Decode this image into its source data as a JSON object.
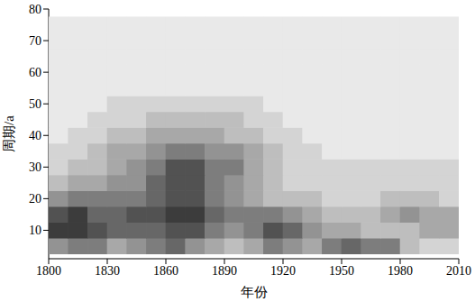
{
  "chart_data": {
    "type": "heatmap",
    "xlabel": "年份",
    "ylabel": "周期/a",
    "x": [
      1805,
      1815,
      1825,
      1835,
      1845,
      1855,
      1865,
      1875,
      1885,
      1895,
      1905,
      1915,
      1925,
      1935,
      1945,
      1955,
      1965,
      1975,
      1985,
      1995,
      2005
    ],
    "y": [
      5,
      10,
      15,
      20,
      25,
      30,
      35,
      40,
      45,
      50,
      55,
      60,
      65,
      70,
      75
    ],
    "values": [
      [
        0.5,
        0.6,
        0.6,
        0.4,
        0.5,
        0.6,
        0.7,
        0.5,
        0.4,
        0.3,
        0.4,
        0.6,
        0.5,
        0.4,
        0.6,
        0.7,
        0.6,
        0.6,
        0.3,
        0.2,
        0.2
      ],
      [
        0.9,
        0.9,
        0.8,
        0.7,
        0.7,
        0.7,
        0.8,
        0.8,
        0.6,
        0.5,
        0.6,
        0.8,
        0.7,
        0.5,
        0.4,
        0.4,
        0.3,
        0.3,
        0.3,
        0.4,
        0.4
      ],
      [
        0.8,
        0.9,
        0.7,
        0.7,
        0.8,
        0.8,
        0.9,
        0.9,
        0.7,
        0.6,
        0.6,
        0.6,
        0.5,
        0.4,
        0.3,
        0.3,
        0.3,
        0.4,
        0.5,
        0.4,
        0.4
      ],
      [
        0.5,
        0.6,
        0.6,
        0.6,
        0.6,
        0.7,
        0.8,
        0.8,
        0.6,
        0.5,
        0.4,
        0.3,
        0.3,
        0.3,
        0.2,
        0.2,
        0.2,
        0.3,
        0.3,
        0.3,
        0.2
      ],
      [
        0.3,
        0.4,
        0.4,
        0.5,
        0.5,
        0.7,
        0.8,
        0.8,
        0.6,
        0.5,
        0.4,
        0.3,
        0.2,
        0.2,
        0.2,
        0.2,
        0.2,
        0.2,
        0.2,
        0.2,
        0.2
      ],
      [
        0.2,
        0.3,
        0.3,
        0.4,
        0.5,
        0.6,
        0.8,
        0.8,
        0.6,
        0.6,
        0.4,
        0.3,
        0.2,
        0.2,
        0.2,
        0.2,
        0.2,
        0.2,
        0.2,
        0.2,
        0.2
      ],
      [
        0.2,
        0.2,
        0.3,
        0.4,
        0.4,
        0.5,
        0.6,
        0.6,
        0.5,
        0.5,
        0.4,
        0.3,
        0.2,
        0.2,
        0.1,
        0.1,
        0.1,
        0.1,
        0.1,
        0.1,
        0.1
      ],
      [
        0.1,
        0.2,
        0.2,
        0.3,
        0.3,
        0.4,
        0.4,
        0.4,
        0.4,
        0.3,
        0.3,
        0.2,
        0.2,
        0.1,
        0.1,
        0.1,
        0.1,
        0.1,
        0.1,
        0.1,
        0.1
      ],
      [
        0.1,
        0.1,
        0.2,
        0.2,
        0.2,
        0.3,
        0.3,
        0.3,
        0.3,
        0.3,
        0.2,
        0.2,
        0.1,
        0.1,
        0.1,
        0.1,
        0.1,
        0.1,
        0.1,
        0.1,
        0.1
      ],
      [
        0.1,
        0.1,
        0.1,
        0.2,
        0.2,
        0.2,
        0.2,
        0.2,
        0.2,
        0.2,
        0.2,
        0.1,
        0.1,
        0.1,
        0.1,
        0.1,
        0.1,
        0.1,
        0.1,
        0.1,
        0.1
      ],
      [
        0.1,
        0.1,
        0.1,
        0.1,
        0.1,
        0.1,
        0.1,
        0.1,
        0.1,
        0.1,
        0.1,
        0.1,
        0.1,
        0.1,
        0.1,
        0.1,
        0.1,
        0.1,
        0.1,
        0.1,
        0.1
      ],
      [
        0.1,
        0.1,
        0.1,
        0.1,
        0.1,
        0.1,
        0.1,
        0.1,
        0.1,
        0.1,
        0.1,
        0.1,
        0.1,
        0.1,
        0.1,
        0.1,
        0.1,
        0.1,
        0.1,
        0.1,
        0.1
      ],
      [
        0.1,
        0.1,
        0.1,
        0.1,
        0.1,
        0.1,
        0.1,
        0.1,
        0.1,
        0.1,
        0.1,
        0.1,
        0.1,
        0.1,
        0.1,
        0.1,
        0.1,
        0.1,
        0.1,
        0.1,
        0.1
      ],
      [
        0.1,
        0.1,
        0.1,
        0.1,
        0.1,
        0.1,
        0.1,
        0.1,
        0.1,
        0.1,
        0.1,
        0.1,
        0.1,
        0.1,
        0.1,
        0.1,
        0.1,
        0.1,
        0.1,
        0.1,
        0.1
      ],
      [
        0.1,
        0.1,
        0.1,
        0.1,
        0.1,
        0.1,
        0.1,
        0.1,
        0.1,
        0.1,
        0.1,
        0.1,
        0.1,
        0.1,
        0.1,
        0.1,
        0.1,
        0.1,
        0.1,
        0.1,
        0.1
      ]
    ],
    "zlim": [
      0,
      1
    ],
    "xlim": [
      1800,
      2010
    ],
    "ylim": [
      1,
      80
    ],
    "xticks": [
      1800,
      1830,
      1860,
      1890,
      1920,
      1950,
      1980,
      2010
    ],
    "yticks": [
      10,
      20,
      30,
      40,
      50,
      60,
      70,
      80
    ],
    "grid": false
  }
}
